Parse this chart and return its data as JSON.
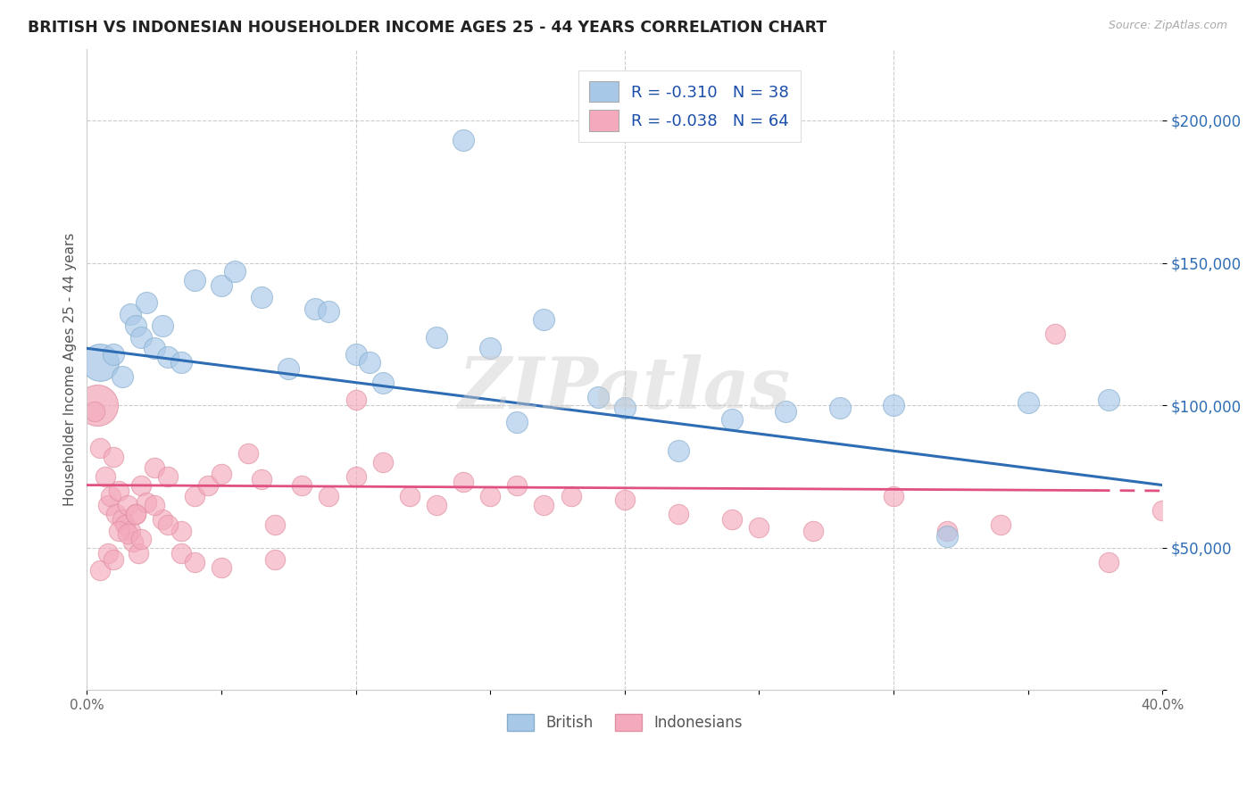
{
  "title": "BRITISH VS INDONESIAN HOUSEHOLDER INCOME AGES 25 - 44 YEARS CORRELATION CHART",
  "source": "Source: ZipAtlas.com",
  "ylabel": "Householder Income Ages 25 - 44 years",
  "xlim": [
    0.0,
    0.4
  ],
  "ylim": [
    0,
    225000
  ],
  "yticks": [
    0,
    50000,
    100000,
    150000,
    200000
  ],
  "ytick_labels": [
    "",
    "$50,000",
    "$100,000",
    "$150,000",
    "$200,000"
  ],
  "xticks": [
    0.0,
    0.05,
    0.1,
    0.15,
    0.2,
    0.25,
    0.3,
    0.35,
    0.4
  ],
  "xtick_labels": [
    "0.0%",
    "",
    "",
    "",
    "",
    "",
    "",
    "",
    "40.0%"
  ],
  "british_color": "#A8C8E8",
  "british_edge_color": "#85AECE",
  "indonesian_color": "#F4AABC",
  "indonesian_edge_color": "#E090A0",
  "british_line_color": "#2E6DB4",
  "indonesian_line_color": "#E05080",
  "r_color": "#1A4DAA",
  "watermark": "ZIPatlas",
  "legend_british_r": "-0.310",
  "legend_british_n": "38",
  "legend_indonesian_r": "-0.038",
  "legend_indonesian_n": "64",
  "british_line_y0": 120000,
  "british_line_y1": 72000,
  "indo_line_y0": 72000,
  "indo_line_y1": 70000,
  "indo_line_solid_end": 0.375,
  "british_x": [
    0.01,
    0.013,
    0.016,
    0.018,
    0.02,
    0.022,
    0.025,
    0.028,
    0.03,
    0.035,
    0.04,
    0.05,
    0.055,
    0.065,
    0.075,
    0.085,
    0.09,
    0.1,
    0.105,
    0.11,
    0.13,
    0.15,
    0.16,
    0.17,
    0.19,
    0.2,
    0.22,
    0.24,
    0.26,
    0.28,
    0.3,
    0.32,
    0.35,
    0.38
  ],
  "british_y": [
    118000,
    110000,
    132000,
    128000,
    124000,
    136000,
    120000,
    128000,
    117000,
    115000,
    144000,
    142000,
    147000,
    138000,
    113000,
    134000,
    133000,
    118000,
    115000,
    108000,
    124000,
    120000,
    94000,
    130000,
    103000,
    99000,
    84000,
    95000,
    98000,
    99000,
    100000,
    54000,
    101000,
    102000
  ],
  "british_outlier_x": [
    0.14
  ],
  "british_outlier_y": [
    193000
  ],
  "british_large_x": [
    0.005
  ],
  "british_large_y": [
    115000
  ],
  "british_large_s": [
    900
  ],
  "british_dot_s": 300,
  "indonesian_x": [
    0.003,
    0.005,
    0.007,
    0.008,
    0.009,
    0.01,
    0.011,
    0.012,
    0.013,
    0.014,
    0.015,
    0.016,
    0.017,
    0.018,
    0.019,
    0.02,
    0.022,
    0.025,
    0.028,
    0.03,
    0.035,
    0.04,
    0.045,
    0.05,
    0.06,
    0.065,
    0.07,
    0.08,
    0.09,
    0.1,
    0.11,
    0.12,
    0.13,
    0.14,
    0.15,
    0.16,
    0.17,
    0.18,
    0.2,
    0.22,
    0.24,
    0.25,
    0.27,
    0.3,
    0.32,
    0.34,
    0.36,
    0.38,
    0.4,
    0.005,
    0.008,
    0.01,
    0.012,
    0.015,
    0.018,
    0.02,
    0.025,
    0.03,
    0.035,
    0.04,
    0.05,
    0.07,
    0.1
  ],
  "indonesian_y": [
    98000,
    85000,
    75000,
    65000,
    68000,
    82000,
    62000,
    70000,
    60000,
    58000,
    65000,
    56000,
    52000,
    62000,
    48000,
    72000,
    66000,
    78000,
    60000,
    75000,
    56000,
    68000,
    72000,
    76000,
    83000,
    74000,
    58000,
    72000,
    68000,
    102000,
    80000,
    68000,
    65000,
    73000,
    68000,
    72000,
    65000,
    68000,
    67000,
    62000,
    60000,
    57000,
    56000,
    68000,
    56000,
    58000,
    125000,
    45000,
    63000,
    42000,
    48000,
    46000,
    56000,
    55000,
    62000,
    53000,
    65000,
    58000,
    48000,
    45000,
    43000,
    46000,
    75000
  ],
  "indonesian_large_x": [
    0.004
  ],
  "indonesian_large_y": [
    100000
  ],
  "indonesian_large_s": [
    1100
  ],
  "indonesian_dot_s": 260
}
